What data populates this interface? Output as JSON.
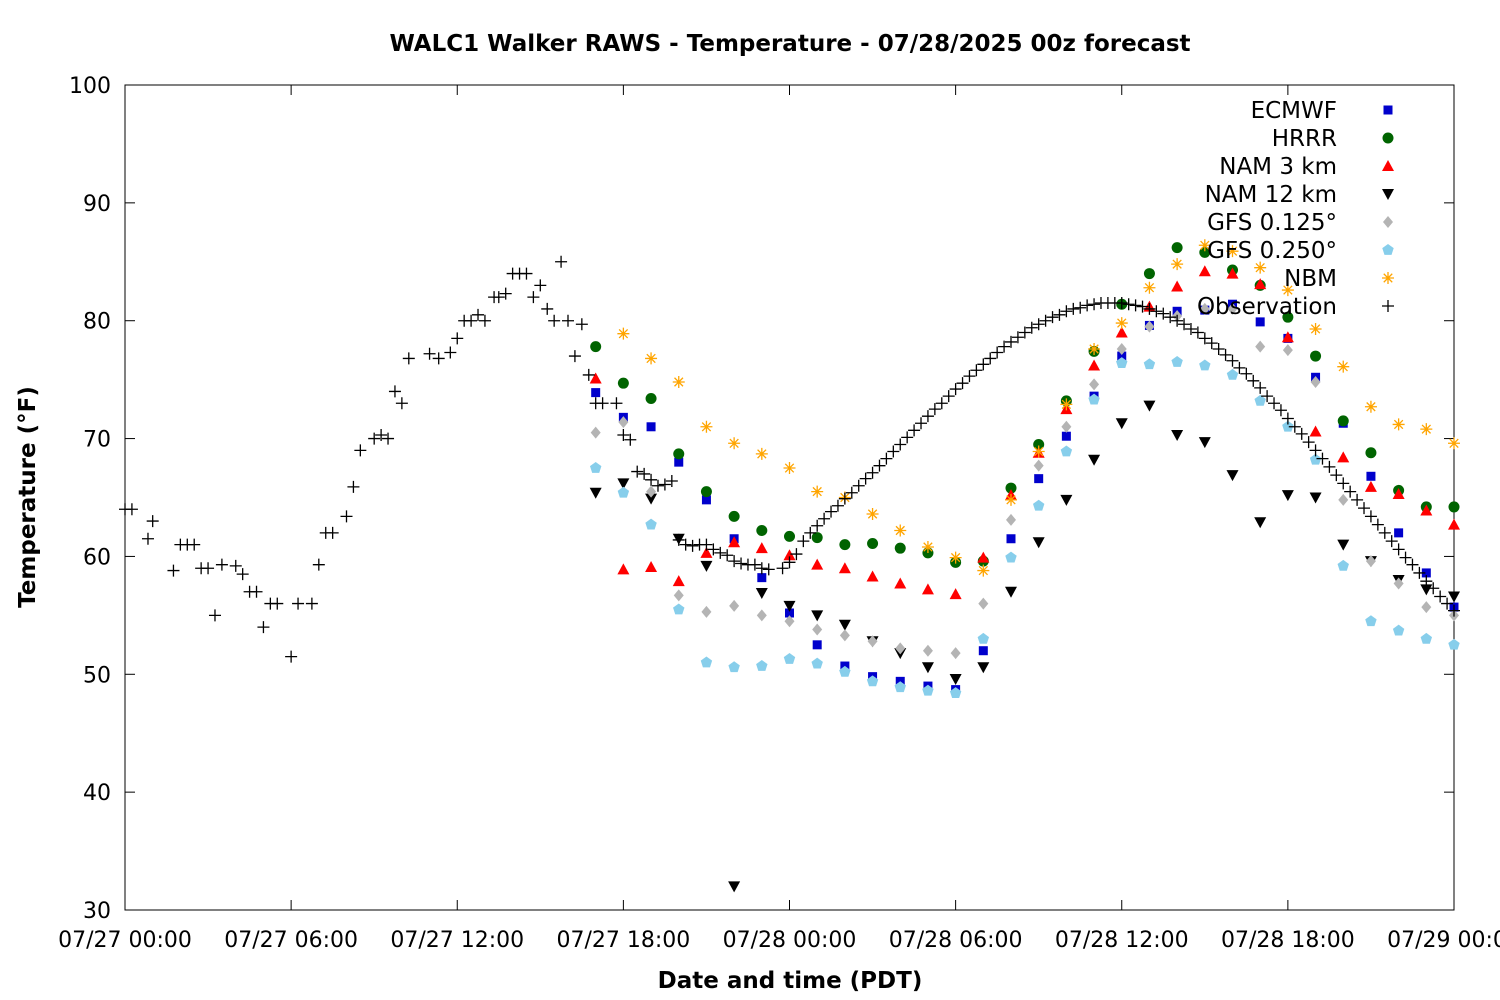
{
  "chart_data": {
    "type": "scatter",
    "title": "WALC1 Walker RAWS - Temperature - 07/28/2025 00z forecast",
    "xlabel": "Date and time (PDT)",
    "ylabel": "Temperature (°F)",
    "x_unit": "hour",
    "x_origin": "07/27 00:00",
    "xlim": [
      0,
      48
    ],
    "ylim": [
      30,
      100
    ],
    "x_ticks": [
      {
        "x": 0,
        "label": "07/27 00:00"
      },
      {
        "x": 6,
        "label": "07/27 06:00"
      },
      {
        "x": 12,
        "label": "07/27 12:00"
      },
      {
        "x": 18,
        "label": "07/27 18:00"
      },
      {
        "x": 24,
        "label": "07/28 00:00"
      },
      {
        "x": 30,
        "label": "07/28 06:00"
      },
      {
        "x": 36,
        "label": "07/28 12:00"
      },
      {
        "x": 42,
        "label": "07/28 18:00"
      },
      {
        "x": 48,
        "label": "07/29 00:00"
      }
    ],
    "y_ticks": [
      30,
      40,
      50,
      60,
      70,
      80,
      90,
      100
    ],
    "grid": false,
    "legend_position": "top-right",
    "series": [
      {
        "name": "ECMWF",
        "marker": "square",
        "color": "#0000cc",
        "x": [
          17,
          18,
          19,
          20,
          21,
          22,
          23,
          24,
          25,
          26,
          27,
          28,
          29,
          30,
          31,
          32,
          33,
          34,
          35,
          36,
          37,
          38,
          39,
          40,
          41,
          42,
          43,
          44,
          45,
          46,
          47,
          48
        ],
        "y": [
          73.9,
          71.8,
          71.0,
          68.0,
          64.8,
          61.5,
          58.2,
          55.2,
          52.5,
          50.7,
          49.8,
          49.4,
          49.0,
          48.7,
          52.0,
          61.5,
          66.6,
          70.2,
          73.6,
          77.0,
          79.6,
          80.8,
          80.9,
          81.4,
          79.9,
          78.5,
          75.2,
          71.3,
          66.8,
          62.0,
          58.6,
          55.7
        ]
      },
      {
        "name": "HRRR",
        "marker": "circle",
        "color": "#006400",
        "x": [
          17,
          18,
          19,
          20,
          21,
          22,
          23,
          24,
          25,
          26,
          27,
          28,
          29,
          30,
          31,
          32,
          33,
          34,
          35,
          36,
          37,
          38,
          39,
          40,
          41,
          42,
          43,
          44,
          45,
          46,
          47,
          48
        ],
        "y": [
          77.8,
          74.7,
          73.4,
          68.7,
          65.5,
          63.4,
          62.2,
          61.7,
          61.6,
          61.0,
          61.1,
          60.7,
          60.3,
          59.5,
          59.6,
          65.8,
          69.5,
          73.2,
          77.4,
          81.4,
          84.0,
          86.2,
          85.8,
          84.3,
          83.0,
          80.3,
          77.0,
          71.5,
          68.8,
          65.6,
          64.2,
          64.2
        ]
      },
      {
        "name": "NAM 3 km",
        "marker": "triangle-up",
        "color": "#ff0000",
        "x": [
          17,
          18,
          19,
          20,
          21,
          22,
          23,
          24,
          25,
          26,
          27,
          28,
          29,
          30,
          31,
          32,
          33,
          34,
          35,
          36,
          37,
          38,
          39,
          40,
          41,
          42,
          43,
          44,
          45,
          46,
          47,
          48
        ],
        "y": [
          75.1,
          58.9,
          59.1,
          57.9,
          60.3,
          61.2,
          60.7,
          60.1,
          59.3,
          59.0,
          58.3,
          57.7,
          57.2,
          56.8,
          59.9,
          65.2,
          68.8,
          72.5,
          76.2,
          79.0,
          81.2,
          82.9,
          84.2,
          84.0,
          83.1,
          78.6,
          70.6,
          68.4,
          65.9,
          65.3,
          63.9,
          62.7
        ]
      },
      {
        "name": "NAM 12 km",
        "marker": "triangle-down",
        "color": "#000000",
        "x": [
          17,
          18,
          19,
          20,
          21,
          22,
          23,
          24,
          25,
          26,
          27,
          28,
          29,
          30,
          31,
          32,
          33,
          34,
          35,
          36,
          37,
          38,
          39,
          40,
          41,
          42,
          43,
          44,
          45,
          46,
          47,
          48
        ],
        "y": [
          65.4,
          66.2,
          64.9,
          61.5,
          59.2,
          32.0,
          56.9,
          55.8,
          55.0,
          54.2,
          52.8,
          51.8,
          50.6,
          49.6,
          50.6,
          57.0,
          61.2,
          64.8,
          68.2,
          71.3,
          72.8,
          70.3,
          69.7,
          66.9,
          62.9,
          65.2,
          65.0,
          61.0,
          59.6,
          58.0,
          57.2,
          56.6
        ]
      },
      {
        "name": "GFS 0.125°",
        "marker": "diamond",
        "color": "#b4b4b4",
        "x": [
          17,
          18,
          19,
          20,
          21,
          22,
          23,
          24,
          25,
          26,
          27,
          28,
          29,
          30,
          31,
          32,
          33,
          34,
          35,
          36,
          37,
          38,
          39,
          40,
          41,
          42,
          43,
          44,
          45,
          46,
          47,
          48
        ],
        "y": [
          70.5,
          71.4,
          65.5,
          56.7,
          55.3,
          55.8,
          55.0,
          54.5,
          53.8,
          53.3,
          52.8,
          52.2,
          52.0,
          51.8,
          56.0,
          63.1,
          67.7,
          71.0,
          74.6,
          77.6,
          79.5,
          80.4,
          81.0,
          81.0,
          77.8,
          77.5,
          74.8,
          64.8,
          59.6,
          57.7,
          55.7,
          55.0
        ]
      },
      {
        "name": "GFS 0.250°",
        "marker": "pentagon",
        "color": "#87ceeb",
        "x": [
          17,
          18,
          19,
          20,
          21,
          22,
          23,
          24,
          25,
          26,
          27,
          28,
          29,
          30,
          31,
          32,
          33,
          34,
          35,
          36,
          37,
          38,
          39,
          40,
          41,
          42,
          43,
          44,
          45,
          46,
          47,
          48
        ],
        "y": [
          67.5,
          65.4,
          62.7,
          55.5,
          51.0,
          50.6,
          50.7,
          51.3,
          50.9,
          50.2,
          49.4,
          48.9,
          48.6,
          48.4,
          53.0,
          59.9,
          64.3,
          68.9,
          73.3,
          76.4,
          76.3,
          76.5,
          76.2,
          75.4,
          73.2,
          71.0,
          68.2,
          59.2,
          54.5,
          53.7,
          53.0,
          52.5
        ]
      },
      {
        "name": "NBM",
        "marker": "star",
        "color": "#ffa500",
        "x": [
          18,
          19,
          20,
          21,
          22,
          23,
          24,
          25,
          26,
          27,
          28,
          29,
          30,
          31,
          32,
          33,
          34,
          35,
          36,
          37,
          38,
          39,
          40,
          41,
          42,
          43,
          44,
          45,
          46,
          47,
          48
        ],
        "y": [
          78.9,
          76.8,
          74.8,
          71.0,
          69.6,
          68.7,
          67.5,
          65.5,
          65.0,
          63.6,
          62.2,
          60.8,
          59.9,
          58.8,
          64.8,
          68.9,
          72.9,
          77.6,
          79.8,
          82.8,
          84.8,
          86.4,
          85.9,
          84.5,
          82.6,
          79.3,
          76.1,
          72.7,
          71.2,
          70.8,
          69.6
        ]
      },
      {
        "name": "Observation",
        "marker": "plus",
        "color": "#000000",
        "x": [
          0.0,
          0.25,
          0.83,
          1.0,
          1.75,
          2.0,
          2.25,
          2.5,
          2.75,
          3.0,
          3.25,
          3.5,
          4.0,
          4.25,
          4.5,
          4.75,
          5.0,
          5.25,
          5.5,
          6.0,
          6.25,
          6.75,
          7.0,
          7.25,
          7.5,
          8.0,
          8.25,
          8.5,
          9.0,
          9.25,
          9.5,
          9.75,
          10.0,
          10.25,
          11.0,
          11.33,
          11.75,
          12.0,
          12.25,
          12.5,
          12.75,
          13.0,
          13.33,
          13.5,
          13.75,
          14.0,
          14.25,
          14.5,
          14.75,
          15.0,
          15.25,
          15.5,
          15.75,
          16.0,
          16.25,
          16.5,
          16.75,
          17.0,
          17.25,
          17.75,
          18.0,
          18.25,
          18.5,
          18.75,
          19.0,
          19.25,
          19.5,
          19.75,
          20.0,
          20.25,
          20.5,
          20.75,
          21.0,
          21.25,
          21.5,
          21.75,
          22.0,
          22.25,
          22.5,
          22.75,
          23.0,
          23.25,
          23.75,
          24.0,
          24.25,
          24.5,
          24.75,
          25.0,
          25.25,
          25.5,
          25.75,
          26.0,
          26.25,
          26.5,
          26.75,
          27.0,
          27.25,
          27.5,
          27.75,
          28.0,
          28.25,
          28.5,
          28.75,
          29.0,
          29.25,
          29.5,
          29.75,
          30.0,
          30.25,
          30.5,
          30.75,
          31.0,
          31.25,
          31.5,
          31.75,
          32.0,
          32.25,
          32.5,
          32.75,
          33.0,
          33.25,
          33.5,
          33.75,
          34.0,
          34.25,
          34.5,
          34.75,
          35.0,
          35.25,
          35.5,
          35.75,
          36.0,
          36.25,
          36.5,
          36.75,
          37.0,
          37.25,
          37.5,
          37.75,
          38.0,
          38.25,
          38.5,
          38.75,
          39.0,
          39.25,
          39.5,
          39.75,
          40.0,
          40.25,
          40.5,
          40.75,
          41.0,
          41.25,
          41.5,
          41.75,
          42.0,
          42.25,
          42.5,
          42.75,
          43.0,
          43.25,
          43.5,
          43.75,
          44.0,
          44.25,
          44.5,
          44.75,
          45.0,
          45.25,
          45.5,
          45.75,
          46.0,
          46.25,
          46.5,
          46.75,
          47.0,
          47.25,
          47.5,
          47.75,
          48.0
        ],
        "y": [
          64.0,
          64.0,
          61.5,
          63.0,
          58.8,
          61.0,
          61.0,
          61.0,
          59.0,
          59.0,
          55.0,
          59.3,
          59.2,
          58.5,
          57.0,
          57.0,
          54.0,
          56.0,
          56.0,
          51.5,
          56.0,
          56.0,
          59.3,
          62.0,
          62.0,
          63.4,
          65.9,
          69.0,
          70.0,
          70.3,
          70.0,
          74.0,
          73.0,
          76.8,
          77.2,
          76.8,
          77.3,
          78.5,
          80.0,
          80.0,
          80.5,
          80.0,
          82.0,
          82.0,
          82.3,
          84.0,
          84.0,
          84.0,
          82.0,
          83.0,
          81.0,
          80.0,
          85.0,
          80.0,
          77.0,
          79.7,
          75.4,
          73.0,
          73.0,
          73.0,
          70.3,
          69.9,
          67.2,
          67.0,
          66.5,
          66.0,
          66.1,
          66.4,
          61.4,
          61.0,
          60.9,
          61.0,
          61.0,
          60.6,
          60.3,
          60.1,
          59.6,
          59.4,
          59.3,
          59.3,
          59.0,
          58.9,
          59.0,
          59.5,
          60.2,
          61.3,
          62.0,
          62.6,
          63.2,
          63.8,
          64.3,
          64.9,
          65.4,
          66.0,
          66.6,
          67.1,
          67.7,
          68.3,
          68.9,
          69.5,
          70.1,
          70.7,
          71.3,
          71.9,
          72.5,
          73.0,
          73.6,
          74.2,
          74.7,
          75.3,
          75.8,
          76.3,
          76.8,
          77.3,
          77.8,
          78.2,
          78.6,
          79.0,
          79.4,
          79.7,
          80.0,
          80.3,
          80.5,
          80.8,
          81.0,
          81.1,
          81.3,
          81.4,
          81.5,
          81.5,
          81.5,
          81.5,
          81.4,
          81.3,
          81.2,
          81.0,
          80.8,
          80.6,
          80.3,
          80.0,
          79.7,
          79.3,
          79.0,
          78.5,
          78.1,
          77.6,
          77.1,
          76.6,
          76.0,
          75.5,
          74.9,
          74.3,
          73.6,
          73.0,
          72.4,
          71.7,
          71.0,
          70.4,
          69.7,
          69.0,
          68.3,
          67.6,
          66.9,
          66.2,
          65.5,
          64.8,
          64.1,
          63.4,
          62.7,
          62.0,
          61.3,
          60.6,
          59.9,
          59.3,
          58.6,
          57.9,
          57.3,
          56.6,
          56.0,
          55.4
        ]
      }
    ]
  }
}
